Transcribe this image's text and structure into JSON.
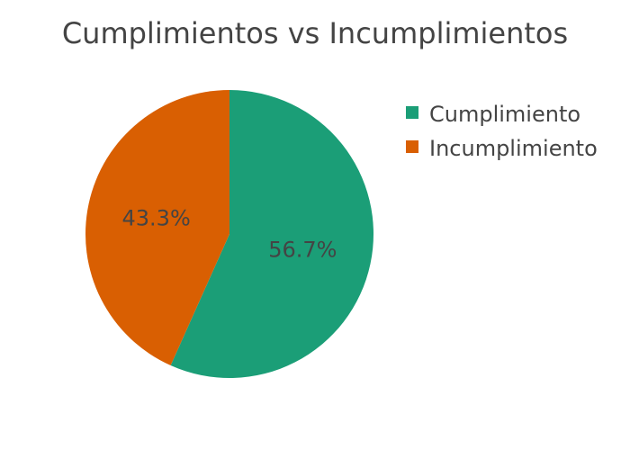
{
  "chart_data": {
    "type": "pie",
    "title": "Cumplimientos vs Incumplimientos",
    "categories": [
      "Cumplimiento",
      "Incumplimiento"
    ],
    "values": [
      56.7,
      43.3
    ],
    "value_labels": [
      "56.7%",
      "43.3%"
    ],
    "colors": [
      "#1b9e77",
      "#d95f02"
    ],
    "direction": "clockwise",
    "start_angle": "top",
    "legend_position": "top-right"
  }
}
